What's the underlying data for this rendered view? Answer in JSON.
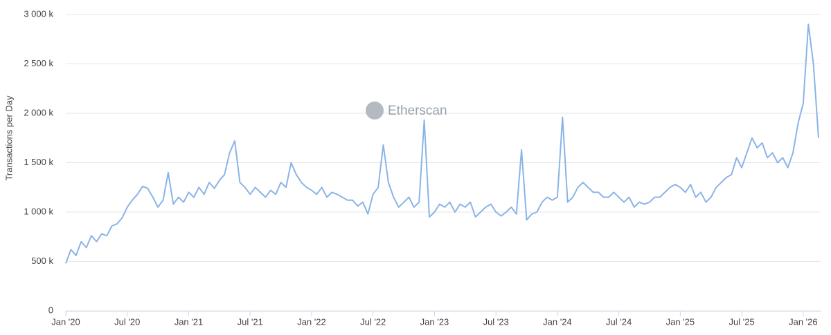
{
  "chart_data": {
    "type": "line",
    "y_label": "Transactions per Day",
    "watermark": "Etherscan",
    "x": [
      0,
      0.5,
      1,
      1.5,
      2,
      2.5,
      3,
      3.5,
      4,
      4.5,
      5,
      5.5,
      6,
      6.5,
      7,
      7.5,
      8,
      8.5,
      9,
      9.5,
      10,
      10.5,
      11,
      11.5,
      12,
      12.5,
      13,
      13.5,
      14,
      14.5,
      15,
      15.5,
      16,
      16.5,
      17,
      17.5,
      18,
      18.5,
      19,
      19.5,
      20,
      20.5,
      21,
      21.5,
      22,
      22.5,
      23,
      23.5,
      24,
      24.5,
      25,
      25.5,
      26,
      26.5,
      27,
      27.5,
      28,
      28.5,
      29,
      29.5,
      30,
      30.5,
      31,
      31.5,
      32,
      32.5,
      33,
      33.5,
      34,
      34.5,
      35,
      35.5,
      36,
      36.5,
      37,
      37.5,
      38,
      38.5,
      39,
      39.5,
      40,
      40.5,
      41,
      41.5,
      42,
      42.5,
      43,
      43.5,
      44,
      44.5,
      45,
      45.5,
      46,
      46.5,
      47,
      47.5,
      48,
      48.5,
      49,
      49.5,
      50,
      50.5,
      51,
      51.5,
      52,
      52.5,
      53,
      53.5,
      54,
      54.5,
      55,
      55.5,
      56,
      56.5,
      57,
      57.5,
      58,
      58.5,
      59,
      59.5,
      60,
      60.5,
      61,
      61.5,
      62,
      62.5,
      63,
      63.5,
      64,
      64.5,
      65,
      65.5,
      66,
      66.5,
      67,
      67.5,
      68,
      68.5,
      69,
      69.5,
      70,
      70.5,
      71,
      71.5,
      72,
      72.5,
      73,
      73.5
    ],
    "series": [
      {
        "name": "Transactions",
        "color": "#8ab4e8",
        "values": [
          480,
          620,
          560,
          700,
          640,
          760,
          700,
          780,
          760,
          860,
          880,
          940,
          1050,
          1120,
          1180,
          1260,
          1240,
          1150,
          1050,
          1120,
          1400,
          1080,
          1150,
          1100,
          1200,
          1150,
          1250,
          1180,
          1300,
          1240,
          1320,
          1380,
          1600,
          1720,
          1300,
          1250,
          1180,
          1250,
          1200,
          1150,
          1220,
          1180,
          1300,
          1250,
          1500,
          1380,
          1300,
          1250,
          1220,
          1180,
          1250,
          1150,
          1200,
          1180,
          1150,
          1120,
          1120,
          1060,
          1100,
          980,
          1180,
          1250,
          1680,
          1300,
          1150,
          1050,
          1100,
          1150,
          1050,
          1100,
          1930,
          950,
          1000,
          1080,
          1050,
          1100,
          1000,
          1080,
          1050,
          1100,
          950,
          1000,
          1050,
          1080,
          1000,
          960,
          1000,
          1050,
          980,
          1630,
          920,
          980,
          1000,
          1100,
          1150,
          1120,
          1150,
          1960,
          1100,
          1150,
          1250,
          1300,
          1250,
          1200,
          1200,
          1150,
          1150,
          1200,
          1150,
          1100,
          1150,
          1050,
          1100,
          1080,
          1100,
          1150,
          1150,
          1200,
          1250,
          1280,
          1250,
          1200,
          1280,
          1150,
          1200,
          1100,
          1150,
          1250,
          1300,
          1350,
          1380,
          1550,
          1450,
          1600,
          1750,
          1650,
          1700,
          1550,
          1600,
          1500,
          1550,
          1450,
          1600,
          1900,
          2100,
          2900,
          2500,
          1750
        ]
      }
    ],
    "xlim": [
      0,
      73.7
    ],
    "xticks": [
      {
        "value": 0,
        "label": "Jan '20"
      },
      {
        "value": 6,
        "label": "Jul '20"
      },
      {
        "value": 12,
        "label": "Jan '21"
      },
      {
        "value": 18,
        "label": "Jul '21"
      },
      {
        "value": 24,
        "label": "Jan '22"
      },
      {
        "value": 30,
        "label": "Jul '22"
      },
      {
        "value": 36,
        "label": "Jan '23"
      },
      {
        "value": 42,
        "label": "Jul '23"
      },
      {
        "value": 48,
        "label": "Jan '24"
      },
      {
        "value": 54,
        "label": "Jul '24"
      },
      {
        "value": 60,
        "label": "Jan '25"
      },
      {
        "value": 66,
        "label": "Jul '25"
      },
      {
        "value": 72,
        "label": "Jan '26"
      }
    ],
    "ylim": [
      0,
      3000
    ],
    "yticks": [
      0,
      {
        "value": 500,
        "label": "500 k"
      },
      {
        "value": 1000,
        "label": "1 000 k"
      },
      {
        "value": 1500,
        "label": "1 500 k"
      },
      {
        "value": 2000,
        "label": "2 000 k"
      },
      {
        "value": 2500,
        "label": "2 500 k"
      },
      {
        "value": 3000,
        "label": "3 000 k"
      }
    ],
    "grid": true
  }
}
